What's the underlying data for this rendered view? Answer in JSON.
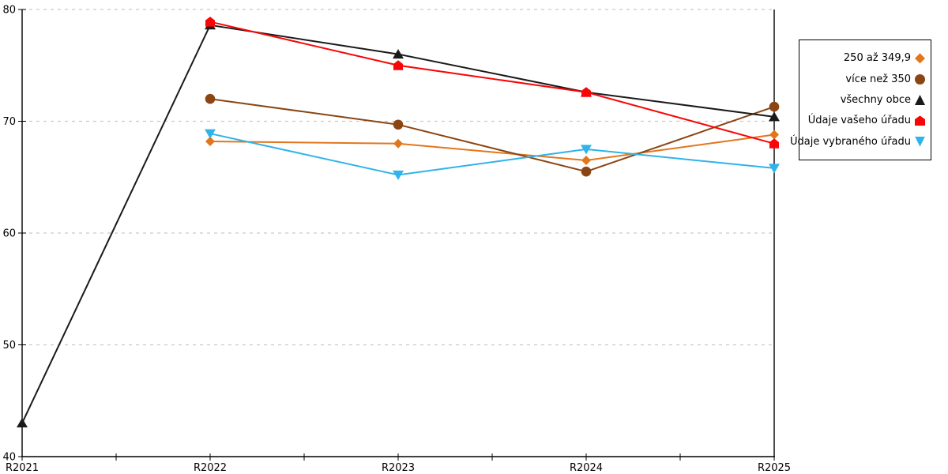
{
  "chart_data": {
    "type": "line",
    "title": "",
    "xlabel": "",
    "ylabel": "",
    "x": [
      "R2021",
      "R2022",
      "R2023",
      "R2024",
      "R2025"
    ],
    "ylim": [
      40,
      80
    ],
    "yticks": [
      40,
      50,
      60,
      70,
      80
    ],
    "grid": "horizontal-dashed",
    "legend_position": "right",
    "axis_color": "#000000",
    "gridline_color": "#c9c9c9",
    "background_color": "#ffffff",
    "series": [
      {
        "name": "250 až 349,9",
        "marker": "diamond",
        "color": "#e2761b",
        "values": [
          null,
          68.2,
          68.0,
          66.5,
          68.8
        ]
      },
      {
        "name": "více než 350",
        "marker": "circle",
        "color": "#8b4513",
        "values": [
          null,
          72.0,
          69.7,
          65.5,
          71.3
        ]
      },
      {
        "name": "všechny obce",
        "marker": "triangle-up",
        "color": "#1a1a1a",
        "values": [
          43.0,
          78.6,
          76.0,
          72.6,
          70.4
        ]
      },
      {
        "name": "Údaje vašeho úřadu",
        "marker": "pentagon",
        "color": "#f90506",
        "values": [
          null,
          78.9,
          75.0,
          72.6,
          68.0
        ]
      },
      {
        "name": "Údaje vybraného úřadu",
        "marker": "triangle-down",
        "color": "#2fb3e8",
        "values": [
          null,
          68.9,
          65.2,
          67.5,
          65.8
        ]
      }
    ]
  }
}
